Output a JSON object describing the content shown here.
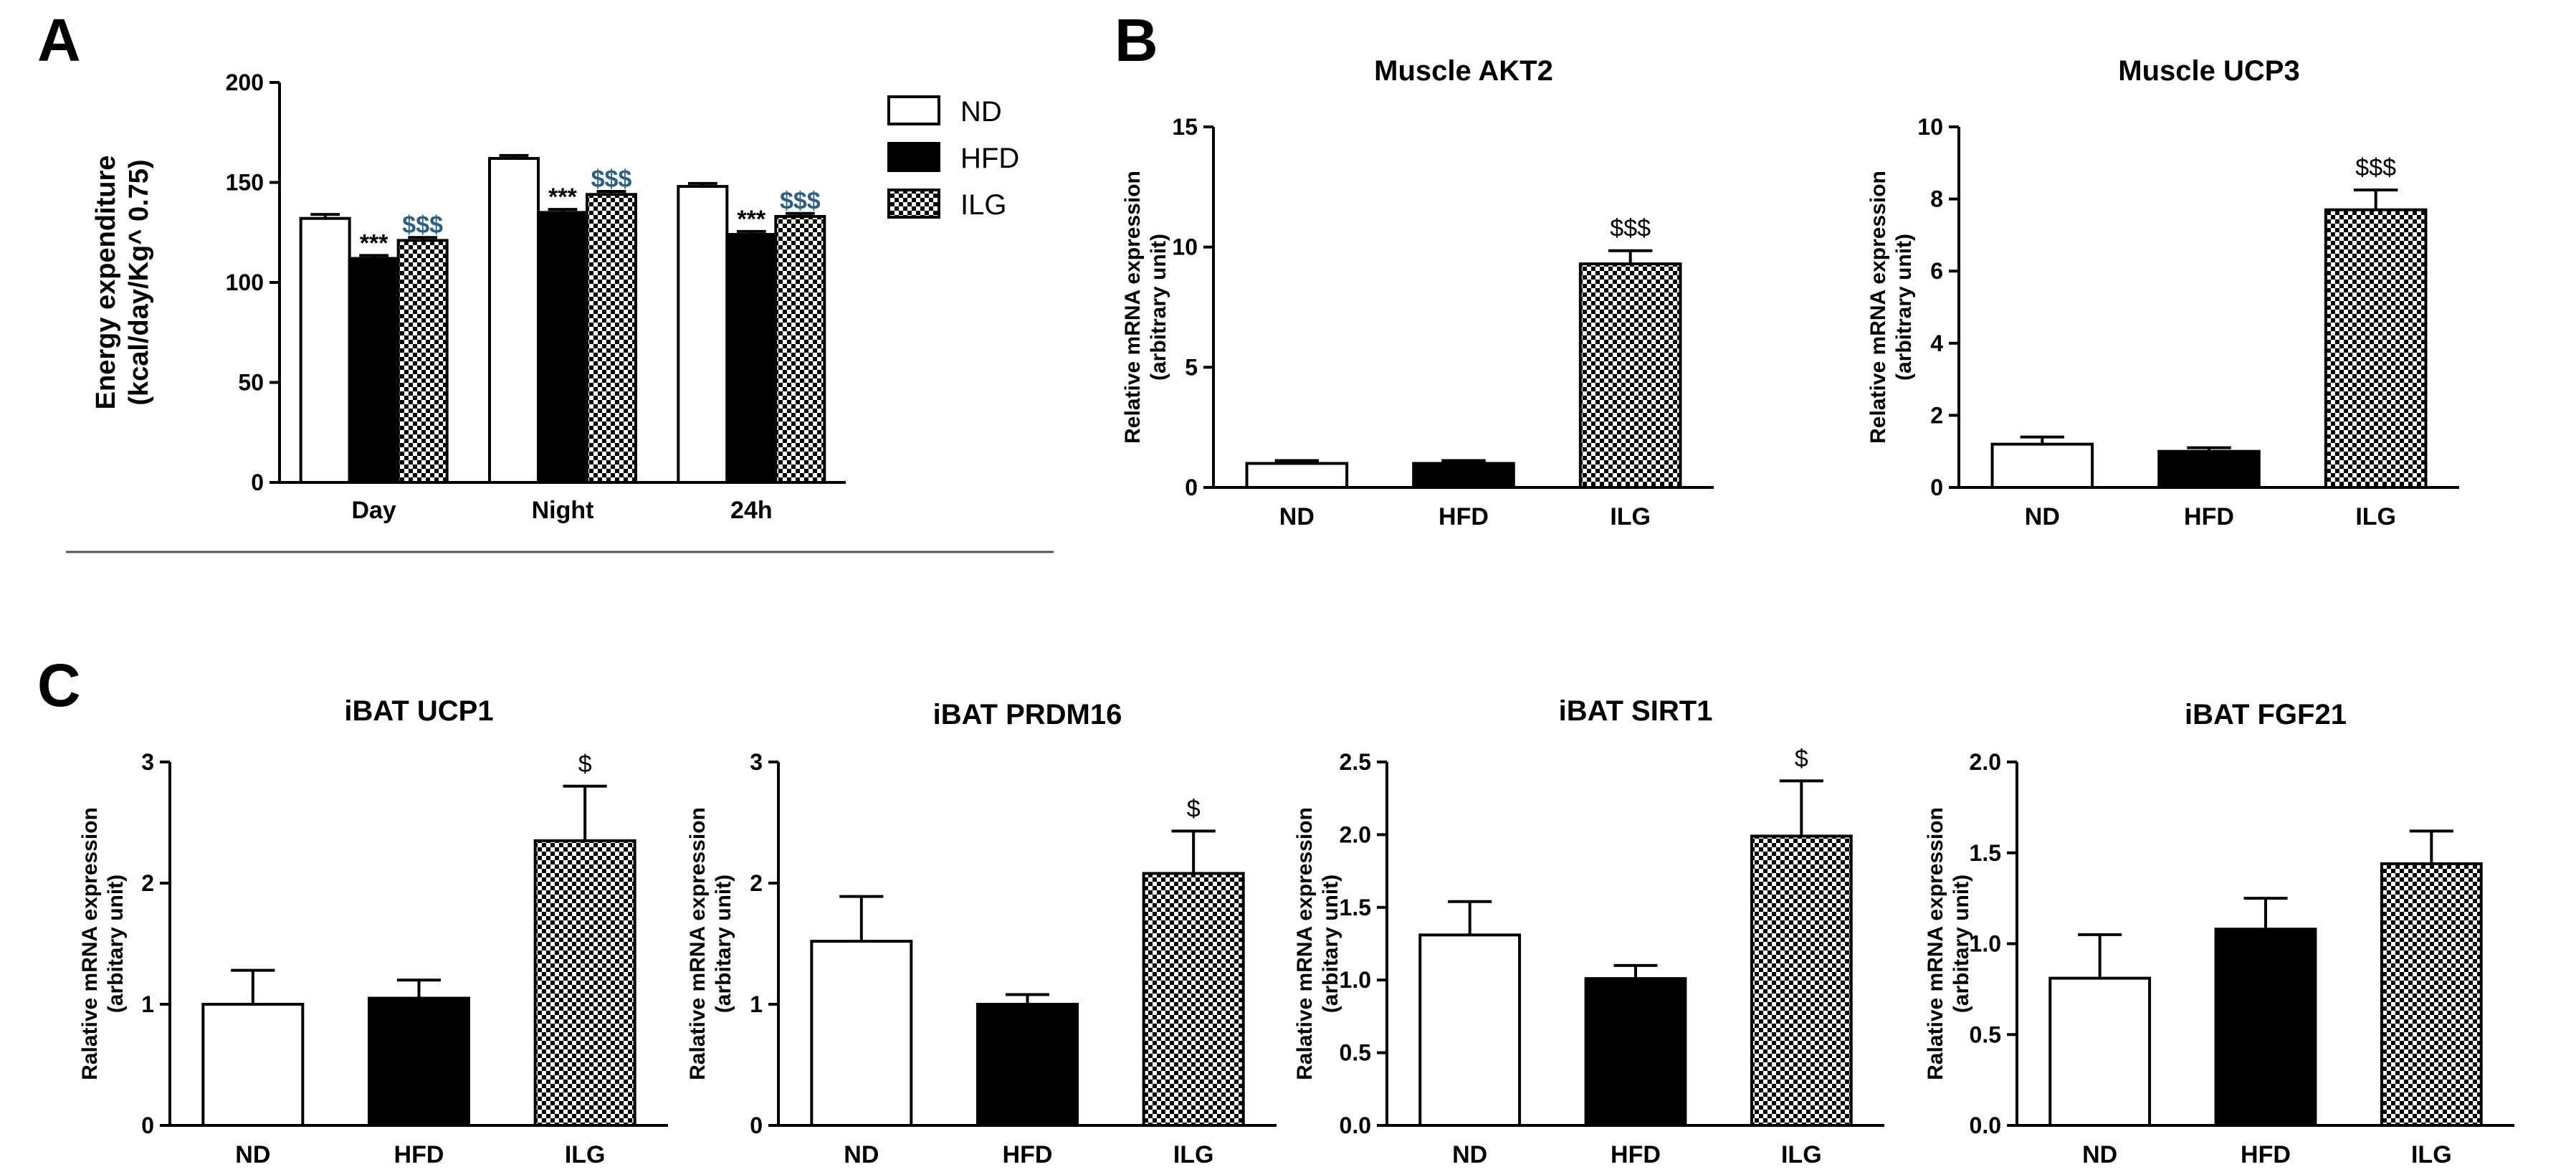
{
  "panels": {
    "a": "A",
    "b": "B",
    "c": "C"
  },
  "colors": {
    "ND": "#ffffff",
    "HFD": "#000000",
    "ILG": "checker",
    "annot_dollar": "#2e5e80"
  },
  "legend": [
    "ND",
    "HFD",
    "ILG"
  ],
  "chart_data": [
    {
      "id": "energy",
      "type": "bar",
      "title": "",
      "ylabel": [
        "Energy expenditure",
        "(kcal/day/Kg^ 0.75)"
      ],
      "ylim": [
        0,
        200
      ],
      "yticks": [
        0,
        50,
        100,
        150,
        200
      ],
      "categories": [
        "Day",
        "Night",
        "24h"
      ],
      "series": [
        {
          "name": "ND",
          "values": [
            132,
            162,
            148
          ],
          "errors": [
            2,
            1.5,
            1.5
          ]
        },
        {
          "name": "HFD",
          "values": [
            112,
            135,
            124
          ],
          "errors": [
            1.5,
            1.5,
            1.5
          ]
        },
        {
          "name": "ILG",
          "values": [
            121,
            144,
            133
          ],
          "errors": [
            1.5,
            1.5,
            1.5
          ]
        }
      ],
      "annotations": [
        {
          "series": "HFD",
          "category": "Day",
          "text": "***"
        },
        {
          "series": "ILG",
          "category": "Day",
          "text": "$$$"
        },
        {
          "series": "HFD",
          "category": "Night",
          "text": "***"
        },
        {
          "series": "ILG",
          "category": "Night",
          "text": "$$$"
        },
        {
          "series": "HFD",
          "category": "24h",
          "text": "***"
        },
        {
          "series": "ILG",
          "category": "24h",
          "text": "$$$"
        }
      ]
    },
    {
      "id": "akt2",
      "type": "bar",
      "title": "Muscle AKT2",
      "ylabel": [
        "Relative mRNA expression",
        "(arbitrary unit)"
      ],
      "ylim": [
        0,
        15
      ],
      "yticks": [
        "0",
        "5",
        "10",
        "15"
      ],
      "categories": [
        "ND",
        "HFD",
        "ILG"
      ],
      "values": [
        1.0,
        1.0,
        9.3
      ],
      "errors": [
        0.12,
        0.12,
        0.55
      ],
      "annotations": [
        "",
        "",
        "$$$"
      ]
    },
    {
      "id": "ucp3",
      "type": "bar",
      "title": "Muscle UCP3",
      "ylabel": [
        "Relative mRNA expression",
        "(arbitrary unit)"
      ],
      "ylim": [
        0,
        10
      ],
      "yticks": [
        "0",
        "2",
        "4",
        "6",
        "8",
        "10"
      ],
      "categories": [
        "ND",
        "HFD",
        "ILG"
      ],
      "values": [
        1.2,
        1.0,
        7.7
      ],
      "errors": [
        0.2,
        0.1,
        0.55
      ],
      "annotations": [
        "",
        "",
        "$$$"
      ]
    },
    {
      "id": "ucp1",
      "type": "bar",
      "title": "iBAT UCP1",
      "ylabel": [
        "Ralative mRNA expression",
        "(arbitary unit)"
      ],
      "ylim": [
        0,
        3
      ],
      "yticks": [
        "0",
        "1",
        "2",
        "3"
      ],
      "categories": [
        "ND",
        "HFD",
        "ILG"
      ],
      "values": [
        1.0,
        1.05,
        2.35
      ],
      "errors": [
        0.28,
        0.15,
        0.45
      ],
      "annotations": [
        "",
        "",
        "$"
      ]
    },
    {
      "id": "prdm16",
      "type": "bar",
      "title": "iBAT PRDM16",
      "ylabel": [
        "Ralative mRNA expression",
        "(arbitary unit)"
      ],
      "ylim": [
        0,
        3
      ],
      "yticks": [
        "0",
        "1",
        "2",
        "3"
      ],
      "categories": [
        "ND",
        "HFD",
        "ILG"
      ],
      "values": [
        1.52,
        1.0,
        2.08
      ],
      "errors": [
        0.37,
        0.08,
        0.35
      ],
      "annotations": [
        "",
        "",
        "$"
      ]
    },
    {
      "id": "sirt1",
      "type": "bar",
      "title": "iBAT SIRT1",
      "ylabel": [
        "Ralative mRNA expression",
        "(arbitary unit)"
      ],
      "ylim": [
        0,
        2.5
      ],
      "yticks": [
        "0.0",
        "0.5",
        "1.0",
        "1.5",
        "2.0",
        "2.5"
      ],
      "categories": [
        "ND",
        "HFD",
        "ILG"
      ],
      "values": [
        1.31,
        1.01,
        1.99
      ],
      "errors": [
        0.23,
        0.09,
        0.38
      ],
      "annotations": [
        "",
        "",
        "$"
      ]
    },
    {
      "id": "fgf21",
      "type": "bar",
      "title": "iBAT FGF21",
      "ylabel": [
        "Ralative mRNA expression",
        "(arbitary unit)"
      ],
      "ylim": [
        0,
        2.0
      ],
      "yticks": [
        "0.0",
        "0.5",
        "1.0",
        "1.5",
        "2.0"
      ],
      "categories": [
        "ND",
        "HFD",
        "ILG"
      ],
      "values": [
        0.81,
        1.08,
        1.44
      ],
      "errors": [
        0.24,
        0.17,
        0.18
      ],
      "annotations": [
        "",
        "",
        ""
      ]
    }
  ]
}
